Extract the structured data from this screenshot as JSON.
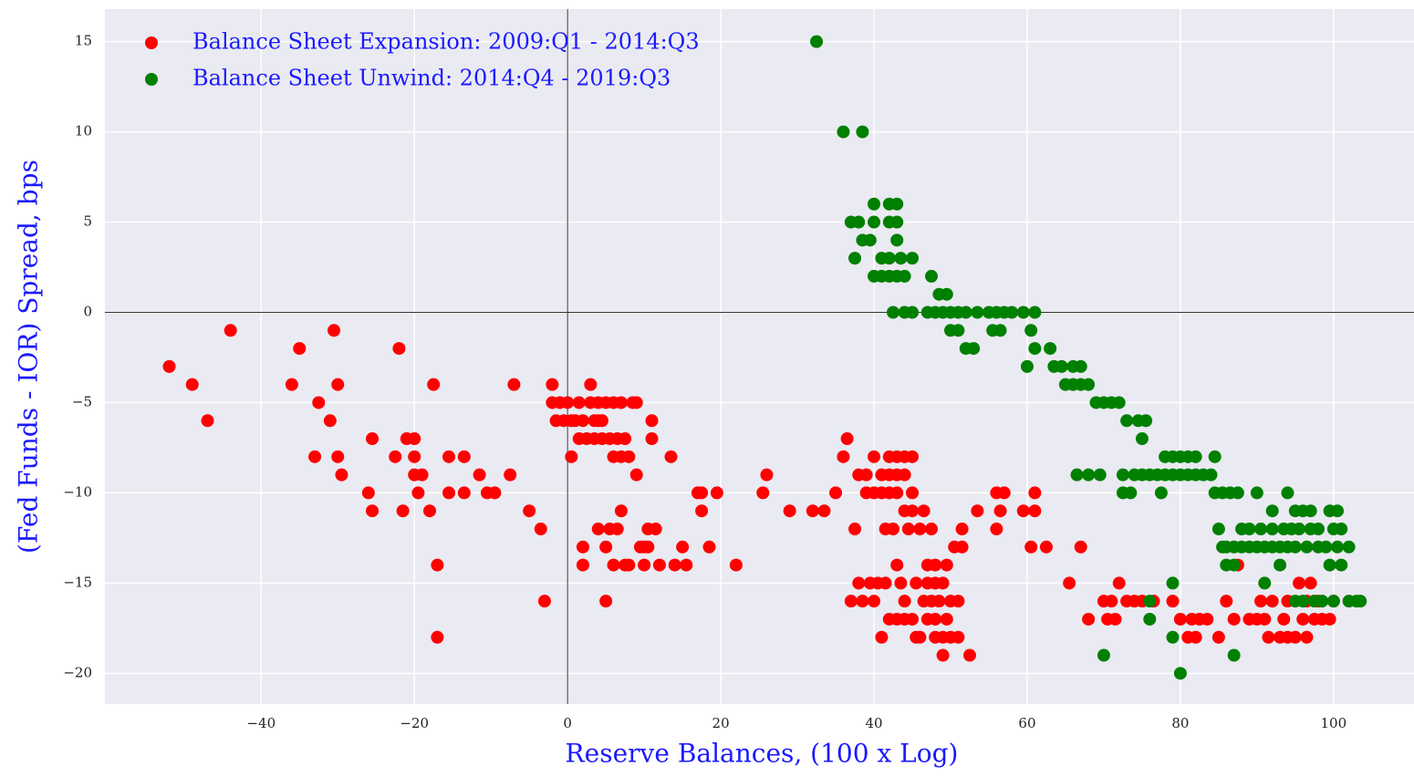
{
  "chart_data": {
    "type": "scatter",
    "x_label": "Reserve Balances, (100 x Log)",
    "y_label": "(Fed Funds - IOR) Spread, bps",
    "xlim": [
      -60.4,
      110.5
    ],
    "ylim": [
      -21.7,
      16.8
    ],
    "xticks": [
      {
        "value": -40,
        "label": "−40"
      },
      {
        "value": -20,
        "label": "−20"
      },
      0,
      20,
      40,
      60,
      80,
      100
    ],
    "yticks": [
      {
        "value": -20,
        "label": "−20"
      },
      {
        "value": -15,
        "label": "−15"
      },
      {
        "value": -10,
        "label": "−10"
      },
      {
        "value": -5,
        "label": "−5"
      },
      0,
      5,
      10,
      15
    ],
    "grid": true,
    "zero_lines": true,
    "legend": "upper left",
    "series": [
      {
        "name": "Balance Sheet Expansion: 2009:Q1 - 2014:Q3",
        "color": "#ff0000",
        "x": [
          -52,
          -49,
          -47,
          -44,
          -36,
          -35,
          -33,
          -32.5,
          -31,
          -30.5,
          -30,
          -30,
          -29.5,
          -26,
          -25.5,
          -25.5,
          -22.5,
          -22,
          -21.5,
          -21,
          -20,
          -20,
          -20,
          -19.5,
          -19,
          -18,
          -17.5,
          -17,
          -17,
          -15.5,
          -15.5,
          -13.5,
          -13.5,
          -11.5,
          -10.5,
          -9.5,
          -7.5,
          -7,
          -5,
          -3.5,
          -3,
          -2,
          -2,
          -1,
          -1.5,
          -0.5,
          0,
          0.5,
          0.5,
          1,
          1.5,
          1.5,
          2,
          2,
          2,
          2.5,
          3,
          3,
          3.5,
          3.5,
          4,
          4,
          4,
          4.5,
          4.5,
          5,
          5,
          5,
          5.5,
          5.5,
          6,
          6,
          6,
          6.5,
          6.5,
          7,
          7,
          7,
          7.5,
          7.5,
          8,
          8,
          8.5,
          9,
          9,
          9.5,
          10,
          10,
          10.5,
          10.5,
          11,
          11,
          11.5,
          12,
          13.5,
          14,
          15,
          15.5,
          17,
          17.5,
          17.5,
          18.5,
          19.5,
          22,
          25.5,
          26,
          29,
          32,
          33.5,
          35,
          36,
          36.5,
          37,
          37.5,
          38,
          38,
          38.5,
          39,
          39,
          39.5,
          40,
          40,
          40,
          40.5,
          41,
          41,
          41,
          41.5,
          41.5,
          42,
          42,
          42,
          42,
          42.5,
          43,
          43,
          43,
          43,
          43,
          43.5,
          44,
          44,
          44,
          44,
          44,
          44.5,
          45,
          45,
          45,
          45,
          45.5,
          45.5,
          46,
          46,
          46.5,
          46.5,
          47,
          47,
          47,
          47.5,
          47.5,
          48,
          48,
          48,
          48,
          48.5,
          49,
          49,
          49,
          49.5,
          49.5,
          50,
          50,
          50.5,
          51,
          51,
          51.5,
          51.5,
          52.5,
          53.5,
          56,
          56,
          56.5,
          57,
          59.5,
          60.5,
          61,
          61,
          62.5,
          65.5,
          67,
          68,
          70,
          70.5,
          71,
          71.5,
          72,
          73,
          74,
          75,
          76.5,
          79,
          80,
          81,
          81.5,
          82,
          82.5,
          83.5,
          85,
          86,
          87,
          87.5,
          89,
          90,
          90.5,
          91,
          91.5,
          92,
          93,
          93.5,
          94,
          94,
          95,
          95.5,
          96,
          96.5,
          96.5,
          97,
          97.5,
          98,
          98.5,
          99.5,
          100
        ],
        "values": [
          -3,
          -4,
          -6,
          -1,
          -4,
          -2,
          -8,
          -5,
          -6,
          -1,
          -4,
          -8,
          -9,
          -10,
          -7,
          -11,
          -8,
          -2,
          -11,
          -7,
          -7,
          -8,
          -9,
          -10,
          -9,
          -11,
          -4,
          -14,
          -18,
          -8,
          -10,
          -8,
          -10,
          -9,
          -10,
          -10,
          -9,
          -4,
          -11,
          -12,
          -16,
          -4,
          -5,
          -5,
          -6,
          -6,
          -5,
          -6,
          -8,
          -6,
          -5,
          -7,
          -6,
          -14,
          -13,
          -7,
          -4,
          -5,
          -6,
          -7,
          -5,
          -6,
          -12,
          -7,
          -6,
          -5,
          -16,
          -13,
          -12,
          -7,
          -5,
          -8,
          -14,
          -7,
          -12,
          -5,
          -8,
          -11,
          -7,
          -14,
          -14,
          -8,
          -5,
          -5,
          -9,
          -13,
          -13,
          -14,
          -12,
          -13,
          -6,
          -7,
          -12,
          -14,
          -8,
          -14,
          -13,
          -14,
          -10,
          -11,
          -10,
          -13,
          -10,
          -14,
          -10,
          -9,
          -11,
          -11,
          -11,
          -10,
          -8,
          -7,
          -16,
          -12,
          -9,
          -15,
          -16,
          -9,
          -10,
          -15,
          -8,
          -10,
          -16,
          -15,
          -9,
          -10,
          -18,
          -12,
          -15,
          -8,
          -9,
          -10,
          -17,
          -12,
          -8,
          -9,
          -10,
          -14,
          -17,
          -15,
          -8,
          -9,
          -11,
          -16,
          -17,
          -12,
          -8,
          -10,
          -11,
          -17,
          -15,
          -18,
          -12,
          -18,
          -11,
          -16,
          -14,
          -15,
          -17,
          -12,
          -16,
          -14,
          -15,
          -17,
          -18,
          -16,
          -15,
          -18,
          -19,
          -14,
          -17,
          -16,
          -18,
          -13,
          -16,
          -18,
          -12,
          -13,
          -19,
          -11,
          -10,
          -12,
          -11,
          -10,
          -11,
          -13,
          -11,
          -10,
          -13,
          -15,
          -13,
          -17,
          -16,
          -17,
          -16,
          -17,
          -15,
          -16,
          -16,
          -16,
          -16,
          -16,
          -17,
          -18,
          -17,
          -18,
          -17,
          -17,
          -18,
          -16,
          -17,
          -14,
          -17,
          -17,
          -16,
          -17,
          -18,
          -16,
          -18,
          -17,
          -16,
          -18,
          -18,
          -15,
          -17,
          -16,
          -18,
          -15,
          -17,
          -16,
          -17,
          -17,
          -16
        ]
      },
      {
        "name": "Balance Sheet Unwind: 2014:Q4 - 2019:Q3",
        "color": "#008000",
        "x": [
          32.5,
          36,
          38.5,
          37,
          37.5,
          38,
          38.5,
          39.5,
          40,
          40,
          40,
          41,
          41,
          42,
          42,
          42,
          42,
          42.5,
          43,
          43,
          43,
          43,
          43.5,
          44,
          44,
          45,
          45,
          47,
          47.5,
          48,
          48.5,
          49,
          49.5,
          50,
          50,
          51,
          51,
          52,
          52,
          53,
          53.5,
          55,
          55.5,
          56,
          56.5,
          57,
          58,
          59.5,
          60,
          60.5,
          61,
          61,
          63,
          63.5,
          64.5,
          65,
          66,
          66,
          66.5,
          67,
          67,
          68,
          68,
          69,
          69.5,
          70,
          71,
          72,
          72.5,
          72.5,
          73,
          73.5,
          74,
          74.5,
          75,
          75,
          75.5,
          76,
          77,
          77.5,
          78,
          78,
          79,
          79,
          80,
          80,
          81,
          81,
          82,
          82,
          83,
          84,
          84.5,
          84.5,
          85,
          85.5,
          85.5,
          86,
          86,
          86.5,
          87,
          87,
          87.5,
          88,
          88,
          89,
          89,
          90,
          90,
          90.5,
          91,
          91,
          92,
          92,
          92,
          93,
          93,
          93.5,
          94,
          94,
          94.5,
          95,
          95,
          95,
          95.5,
          96,
          96,
          96.5,
          97,
          97,
          97.5,
          98,
          98,
          98.5,
          99,
          99.5,
          99.5,
          100,
          100,
          100.5,
          100.5,
          101,
          101,
          102,
          102,
          103,
          103.5,
          76,
          76,
          79,
          79,
          80,
          87,
          70
        ],
        "values": [
          15,
          10,
          10,
          5,
          3,
          5,
          4,
          4,
          6,
          2,
          5,
          3,
          2,
          6,
          5,
          2,
          3,
          0,
          6,
          5,
          4,
          2,
          3,
          0,
          2,
          3,
          0,
          0,
          2,
          0,
          1,
          0,
          1,
          0,
          -1,
          0,
          -1,
          0,
          -2,
          -2,
          0,
          0,
          -1,
          0,
          -1,
          0,
          0,
          0,
          -3,
          -1,
          0,
          -2,
          -2,
          -3,
          -3,
          -4,
          -3,
          -4,
          -9,
          -3,
          -4,
          -4,
          -9,
          -5,
          -9,
          -5,
          -5,
          -5,
          -9,
          -10,
          -6,
          -10,
          -9,
          -6,
          -9,
          -7,
          -6,
          -9,
          -9,
          -10,
          -9,
          -8,
          -9,
          -8,
          -9,
          -8,
          -9,
          -8,
          -9,
          -8,
          -9,
          -9,
          -10,
          -8,
          -12,
          -10,
          -13,
          -14,
          -13,
          -10,
          -14,
          -13,
          -10,
          -13,
          -12,
          -13,
          -12,
          -10,
          -13,
          -12,
          -13,
          -15,
          -11,
          -13,
          -12,
          -13,
          -14,
          -12,
          -10,
          -13,
          -12,
          -11,
          -16,
          -13,
          -12,
          -11,
          -16,
          -13,
          -11,
          -12,
          -16,
          -13,
          -12,
          -16,
          -13,
          -11,
          -14,
          -12,
          -16,
          -11,
          -13,
          -14,
          -12,
          -13,
          -16,
          -16,
          -16,
          -16,
          -17,
          -15,
          -18,
          -20,
          -19,
          -19
        ]
      }
    ]
  }
}
